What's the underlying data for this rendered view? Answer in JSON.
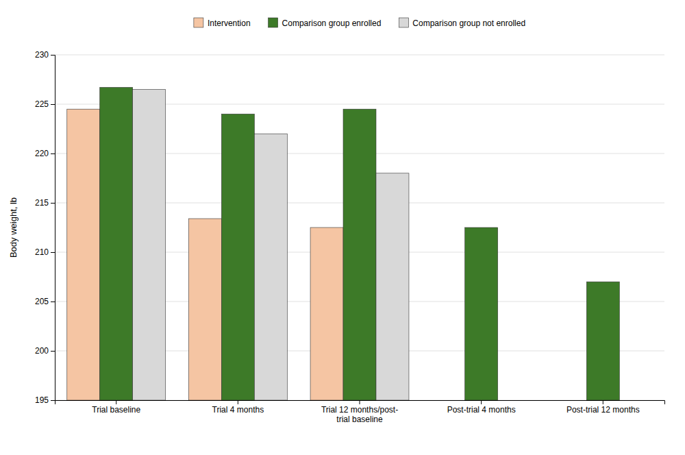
{
  "chart_data": {
    "type": "bar",
    "categories": [
      "Trial baseline",
      "Trial 4 months",
      "Trial 12 months/post-\ntrial baseline",
      "Post-trial 4 months",
      "Post-trial 12 months"
    ],
    "series": [
      {
        "name": "Intervention",
        "color": "#F5C5A3",
        "values": [
          224.5,
          213.4,
          212.5,
          null,
          null
        ]
      },
      {
        "name": "Comparison group enrolled",
        "color": "#3D7A28",
        "values": [
          226.7,
          224.0,
          224.5,
          212.5,
          207.0
        ]
      },
      {
        "name": "Comparison group not enrolled",
        "color": "#D8D8D8",
        "values": [
          226.5,
          222.0,
          218.0,
          null,
          null
        ]
      }
    ],
    "ylabel": "Body weight, lb",
    "ylim": [
      195,
      230
    ],
    "yticks": [
      195,
      200,
      205,
      210,
      215,
      220,
      225,
      230
    ],
    "grid": true,
    "legend": "top"
  }
}
